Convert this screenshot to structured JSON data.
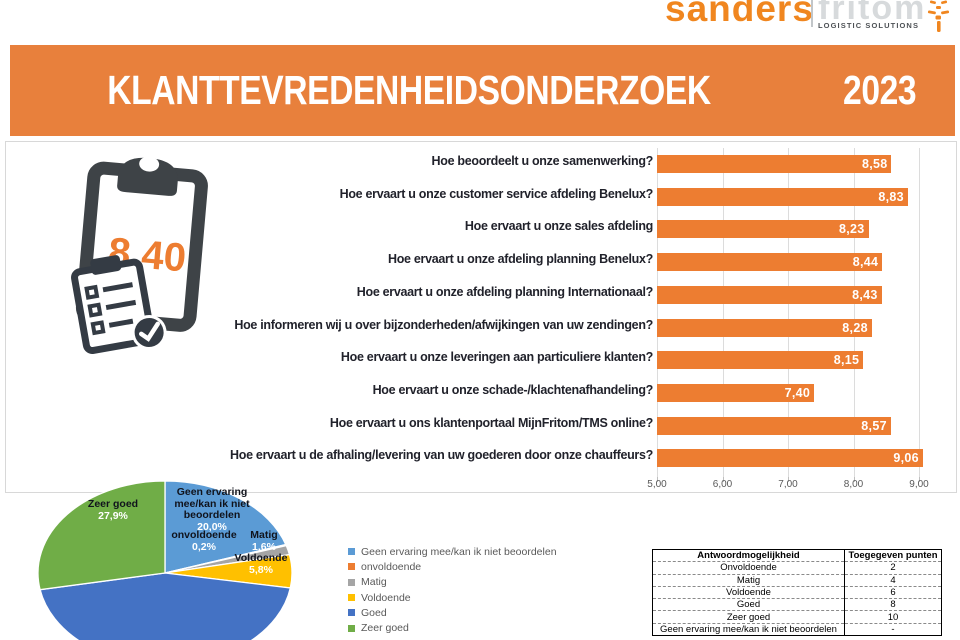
{
  "logo": {
    "part1": "sanders",
    "part2": "fritom",
    "tagline": "LOGISTIC SOLUTIONS",
    "accent_color": "#F0861F"
  },
  "banner": {
    "title": "KLANTTEVREDENHEIDSONDERZOEK",
    "year": "2023",
    "bg_color": "#E8803C"
  },
  "overall_score": {
    "value": "8,40",
    "color": "#ED7D31"
  },
  "chart_data": [
    {
      "type": "bar",
      "orientation": "horizontal",
      "title": "",
      "categories": [
        "Hoe beoordeelt u onze samenwerking?",
        "Hoe ervaart u onze customer service afdeling Benelux?",
        "Hoe ervaart u onze sales afdeling",
        "Hoe ervaart u onze afdeling planning Benelux?",
        "Hoe ervaart u onze afdeling planning Internationaal?",
        "Hoe informeren wij u over bijzonderheden/afwijkingen van uw zendingen?",
        "Hoe ervaart u onze leveringen aan particuliere klanten?",
        "Hoe ervaart u onze schade-/klachtenafhandeling?",
        "Hoe ervaart u ons klantenportaal MijnFritom/TMS online?",
        "Hoe ervaart u de afhaling/levering van uw goederen door onze chauffeurs?"
      ],
      "values": [
        8.58,
        8.83,
        8.23,
        8.44,
        8.43,
        8.28,
        8.15,
        7.4,
        8.57,
        9.06
      ],
      "value_labels": [
        "8,58",
        "8,83",
        "8,23",
        "8,44",
        "8,43",
        "8,28",
        "8,15",
        "7,40",
        "8,57",
        "9,06"
      ],
      "xlim": [
        5,
        9
      ],
      "x_ticks": [
        "5,00",
        "6,00",
        "7,00",
        "8,00",
        "9,00"
      ],
      "grid": true,
      "bar_color": "#ED7D31"
    },
    {
      "type": "pie",
      "title": "",
      "slices": [
        {
          "label": "Geen ervaring mee/kan ik niet beoordelen",
          "value": 20.0,
          "pct_label": "20,0%",
          "color": "#5B9BD5"
        },
        {
          "label": "onvoldoende",
          "value": 0.2,
          "pct_label": "0,2%",
          "color": "#ED7D31"
        },
        {
          "label": "Matig",
          "value": 1.6,
          "pct_label": "1,6%",
          "color": "#A5A5A5"
        },
        {
          "label": "Voldoende",
          "value": 5.8,
          "pct_label": "5,8%",
          "color": "#FFC000"
        },
        {
          "label": "Goed",
          "value": 44.5,
          "pct_label": "",
          "color": "#4472C4"
        },
        {
          "label": "Zeer goed",
          "value": 27.9,
          "pct_label": "27,9%",
          "color": "#70AD47"
        }
      ],
      "legend_position": "right-of-pie"
    }
  ],
  "table": {
    "headers": [
      "Antwoordmogelijkheid",
      "Toegegeven punten"
    ],
    "rows": [
      [
        "Onvoldoende",
        "2"
      ],
      [
        "Matig",
        "4"
      ],
      [
        "Voldoende",
        "6"
      ],
      [
        "Goed",
        "8"
      ],
      [
        "Zeer goed",
        "10"
      ],
      [
        "Geen ervaring mee/kan ik niet beoordelen",
        "-"
      ]
    ]
  }
}
